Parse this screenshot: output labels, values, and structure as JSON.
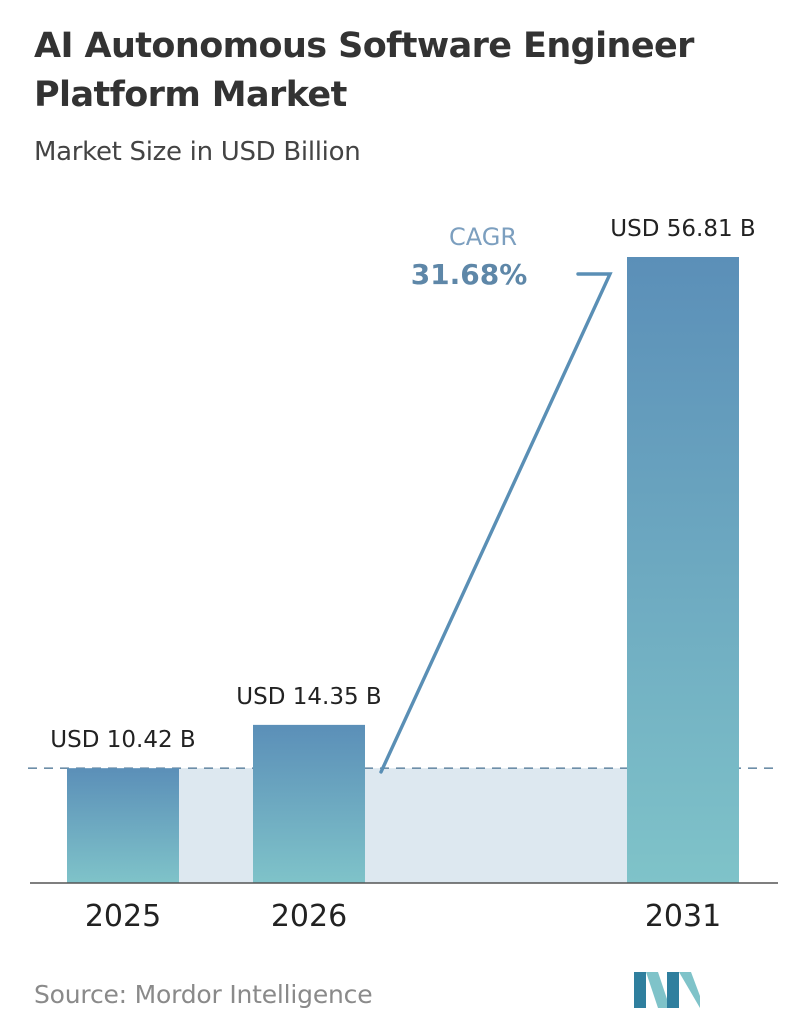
{
  "header": {
    "title": "AI Autonomous Software Engineer Platform Market",
    "subtitle": "Market Size in USD Billion"
  },
  "chart_data": {
    "type": "bar",
    "title": "AI Autonomous Software Engineer Platform Market",
    "subtitle": "Market Size in USD Billion",
    "categories": [
      "2025",
      "2026",
      "2031"
    ],
    "values": [
      10.42,
      14.35,
      56.81
    ],
    "data_labels": [
      "USD 10.42 B",
      "USD 14.35 B",
      "USD 56.81 B"
    ],
    "ylim": [
      0,
      60
    ],
    "grid": false,
    "legend": "none",
    "annotation": {
      "label": "CAGR",
      "value": "31.68%"
    },
    "colors": {
      "bar_top": "#5b8fb8",
      "bar_bottom": "#7fc3c9",
      "band": "#dde8f0",
      "arrow": "#5a8fb5",
      "cagr_label": "#7c9fbf",
      "cagr_value": "#5e87a8",
      "axis": "#555555"
    }
  },
  "footer": {
    "source": "Source: Mordor Intelligence",
    "logo_icon": "mordor-intelligence-logo-icon"
  }
}
